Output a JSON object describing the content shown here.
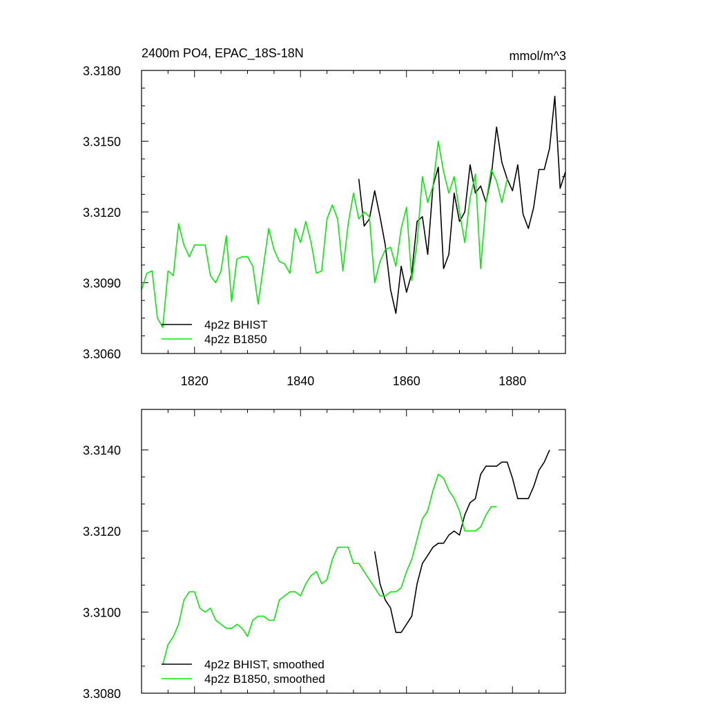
{
  "chart_data": [
    {
      "type": "line",
      "title": "2400m PO4, EPAC_18S-18N",
      "units": "mmol/m^3",
      "xlim": [
        1810,
        1890
      ],
      "ylim": [
        3.306,
        3.318
      ],
      "xticks": [
        1820,
        1840,
        1860,
        1880
      ],
      "xtick_labels": [
        "1820",
        "1840",
        "1860",
        "1880"
      ],
      "yticks": [
        3.306,
        3.309,
        3.312,
        3.315,
        3.318
      ],
      "ytick_labels": [
        "3.3060",
        "3.3090",
        "3.3120",
        "3.3150",
        "3.3180"
      ],
      "legend": "bottom-left",
      "series": [
        {
          "name": "4p2z BHIST",
          "color": "#000000",
          "x": [
            1851,
            1852,
            1853,
            1854,
            1855,
            1856,
            1857,
            1858,
            1859,
            1860,
            1861,
            1862,
            1863,
            1864,
            1865,
            1866,
            1867,
            1868,
            1869,
            1870,
            1871,
            1872,
            1873,
            1874,
            1875,
            1876,
            1877,
            1878,
            1879,
            1880,
            1881,
            1882,
            1883,
            1884,
            1885,
            1886,
            1887,
            1888,
            1889,
            1890
          ],
          "y": [
            3.3134,
            3.3114,
            3.3117,
            3.3129,
            3.3118,
            3.3106,
            3.3087,
            3.3077,
            3.3097,
            3.3086,
            3.3094,
            3.3116,
            3.3118,
            3.3102,
            3.3131,
            3.3139,
            3.3096,
            3.3102,
            3.3128,
            3.3116,
            3.312,
            3.314,
            3.3128,
            3.3131,
            3.3124,
            3.3135,
            3.3156,
            3.3141,
            3.3134,
            3.3129,
            3.314,
            3.3119,
            3.3113,
            3.3122,
            3.3138,
            3.3138,
            3.3147,
            3.3169,
            3.313,
            3.3137
          ]
        },
        {
          "name": "4p2z B1850",
          "color": "#00ee00",
          "x": [
            1810,
            1811,
            1812,
            1813,
            1814,
            1815,
            1816,
            1817,
            1818,
            1819,
            1820,
            1821,
            1822,
            1823,
            1824,
            1825,
            1826,
            1827,
            1828,
            1829,
            1830,
            1831,
            1832,
            1833,
            1834,
            1835,
            1836,
            1837,
            1838,
            1839,
            1840,
            1841,
            1842,
            1843,
            1844,
            1845,
            1846,
            1847,
            1848,
            1849,
            1850,
            1851,
            1852,
            1853,
            1854,
            1855,
            1856,
            1857,
            1858,
            1859,
            1860,
            1861,
            1862,
            1863,
            1864,
            1865,
            1866,
            1867,
            1868,
            1869,
            1870,
            1871,
            1872,
            1873,
            1874,
            1875,
            1876,
            1877,
            1878,
            1879
          ],
          "y": [
            3.3087,
            3.3094,
            3.3095,
            3.3075,
            3.3071,
            3.3095,
            3.3093,
            3.3115,
            3.3106,
            3.3101,
            3.3106,
            3.3106,
            3.3106,
            3.3093,
            3.309,
            3.3095,
            3.311,
            3.3082,
            3.31,
            3.3101,
            3.3101,
            3.3097,
            3.3081,
            3.3097,
            3.3113,
            3.3104,
            3.3099,
            3.3098,
            3.3094,
            3.3113,
            3.3107,
            3.3116,
            3.3107,
            3.3094,
            3.3095,
            3.3117,
            3.3123,
            3.3117,
            3.3095,
            3.3115,
            3.3128,
            3.3117,
            3.312,
            3.3118,
            3.309,
            3.3099,
            3.3104,
            3.3105,
            3.3097,
            3.3113,
            3.3122,
            3.3091,
            3.3107,
            3.3135,
            3.3124,
            3.3131,
            3.315,
            3.3137,
            3.3128,
            3.3135,
            3.312,
            3.3107,
            3.3126,
            3.3136,
            3.3096,
            3.3124,
            3.3138,
            3.3133,
            3.3124,
            3.3134
          ]
        }
      ]
    },
    {
      "type": "line",
      "xlim": [
        1810,
        1890
      ],
      "ylim": [
        3.308,
        3.315
      ],
      "xticks": [
        1820,
        1840,
        1860,
        1880
      ],
      "yticks": [
        3.308,
        3.31,
        3.312,
        3.314
      ],
      "ytick_labels": [
        "3.3080",
        "3.3100",
        "3.3120",
        "3.3140"
      ],
      "legend": "bottom-left",
      "series": [
        {
          "name": "4p2z BHIST, smoothed",
          "color": "#000000",
          "x": [
            1854,
            1855,
            1856,
            1857,
            1858,
            1859,
            1860,
            1861,
            1862,
            1863,
            1864,
            1865,
            1866,
            1867,
            1868,
            1869,
            1870,
            1871,
            1872,
            1873,
            1874,
            1875,
            1876,
            1877,
            1878,
            1879,
            1880,
            1881,
            1882,
            1883,
            1884,
            1885,
            1886,
            1887
          ],
          "y": [
            3.3115,
            3.3107,
            3.3103,
            3.3101,
            3.3095,
            3.3095,
            3.3097,
            3.3099,
            3.3107,
            3.3112,
            3.3114,
            3.3116,
            3.3117,
            3.3117,
            3.3119,
            3.312,
            3.3119,
            3.3124,
            3.3127,
            3.3128,
            3.3134,
            3.3136,
            3.3136,
            3.3136,
            3.3137,
            3.3137,
            3.3133,
            3.3128,
            3.3128,
            3.3128,
            3.3131,
            3.3135,
            3.3137,
            3.314
          ]
        },
        {
          "name": "4p2z B1850, smoothed",
          "color": "#00ee00",
          "x": [
            1814,
            1815,
            1816,
            1817,
            1818,
            1819,
            1820,
            1821,
            1822,
            1823,
            1824,
            1825,
            1826,
            1827,
            1828,
            1829,
            1830,
            1831,
            1832,
            1833,
            1834,
            1835,
            1836,
            1837,
            1838,
            1839,
            1840,
            1841,
            1842,
            1843,
            1844,
            1845,
            1846,
            1847,
            1848,
            1849,
            1850,
            1851,
            1852,
            1853,
            1854,
            1855,
            1856,
            1857,
            1858,
            1859,
            1860,
            1861,
            1862,
            1863,
            1864,
            1865,
            1866,
            1867,
            1868,
            1869,
            1870,
            1871,
            1872,
            1873,
            1874,
            1875,
            1876,
            1877
          ],
          "y": [
            3.3087,
            3.3092,
            3.3094,
            3.3097,
            3.3103,
            3.3105,
            3.3105,
            3.3101,
            3.31,
            3.3101,
            3.3098,
            3.3097,
            3.3096,
            3.3096,
            3.3097,
            3.3096,
            3.3094,
            3.3098,
            3.3099,
            3.3099,
            3.3098,
            3.3098,
            3.3103,
            3.3104,
            3.3105,
            3.3105,
            3.3104,
            3.3107,
            3.3109,
            3.311,
            3.3107,
            3.3108,
            3.3113,
            3.3116,
            3.3116,
            3.3116,
            3.3112,
            3.3112,
            3.311,
            3.3108,
            3.3106,
            3.3104,
            3.3104,
            3.3105,
            3.3105,
            3.3106,
            3.311,
            3.3113,
            3.3118,
            3.3123,
            3.3125,
            3.313,
            3.3134,
            3.3133,
            3.313,
            3.3128,
            3.3125,
            3.312,
            3.312,
            3.312,
            3.3121,
            3.3124,
            3.3126,
            3.3126
          ]
        }
      ]
    }
  ]
}
